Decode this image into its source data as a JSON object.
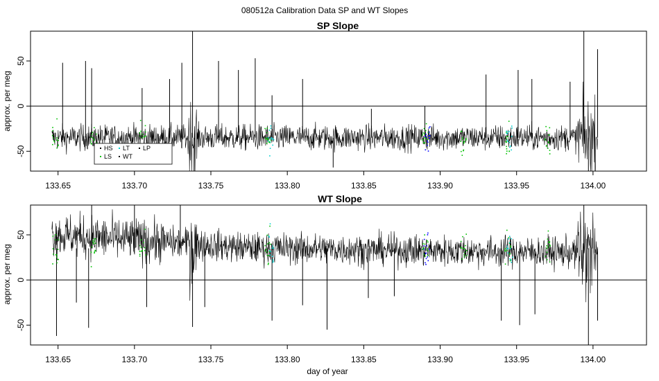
{
  "figure": {
    "suptitle": "080512a   Calibration Data SP and WT Slopes",
    "xlabel": "day of year"
  },
  "chart_data": [
    {
      "type": "line",
      "title": "SP Slope",
      "ylabel": "approx. per meg",
      "xlim": [
        133.632,
        134.035
      ],
      "ylim": [
        -72,
        83
      ],
      "xticks": [
        "133.65",
        "133.70",
        "133.75",
        "133.80",
        "133.85",
        "133.90",
        "133.95",
        "134.00"
      ],
      "yticks": [
        "-50",
        "0",
        "50"
      ],
      "hline": 0,
      "baseline": -35,
      "noise": 10,
      "series": [
        {
          "name": "WT",
          "color": "#000000"
        }
      ],
      "legend": {
        "placement": "lower-left",
        "entries": [
          {
            "label": "HS",
            "color": "#000000"
          },
          {
            "label": "LT",
            "color": "#00d0d0"
          },
          {
            "label": "LP",
            "color": "#000000"
          },
          {
            "label": "LS",
            "color": "#00c000"
          },
          {
            "label": "WT",
            "color": "#000000"
          }
        ]
      },
      "calibration_markers": [
        {
          "x": 133.648,
          "color": "#00c000"
        },
        {
          "x": 133.673,
          "color": "#00c000"
        },
        {
          "x": 133.705,
          "color": "#00c000"
        },
        {
          "x": 133.787,
          "color": "#00c000"
        },
        {
          "x": 133.789,
          "color": "#00d0d0"
        },
        {
          "x": 133.89,
          "color": "#00c000"
        },
        {
          "x": 133.891,
          "color": "#0000ff"
        },
        {
          "x": 133.915,
          "color": "#00c000"
        },
        {
          "x": 133.944,
          "color": "#00c000"
        },
        {
          "x": 133.945,
          "color": "#00d0d0"
        },
        {
          "x": 133.97,
          "color": "#00c000"
        }
      ],
      "spikes": [
        {
          "x": 133.653,
          "y": 48
        },
        {
          "x": 133.668,
          "y": 50
        },
        {
          "x": 133.672,
          "y": 42
        },
        {
          "x": 133.705,
          "y": 20
        },
        {
          "x": 133.723,
          "y": 30
        },
        {
          "x": 133.731,
          "y": 48
        },
        {
          "x": 133.738,
          "y": 83
        },
        {
          "x": 133.739,
          "y": -72
        },
        {
          "x": 133.755,
          "y": 50
        },
        {
          "x": 133.768,
          "y": 40
        },
        {
          "x": 133.779,
          "y": 53
        },
        {
          "x": 133.79,
          "y": 12
        },
        {
          "x": 133.81,
          "y": 30
        },
        {
          "x": 133.83,
          "y": -68
        },
        {
          "x": 133.855,
          "y": -3
        },
        {
          "x": 133.89,
          "y": 0
        },
        {
          "x": 133.93,
          "y": 35
        },
        {
          "x": 133.951,
          "y": 40
        },
        {
          "x": 133.96,
          "y": 30
        },
        {
          "x": 133.985,
          "y": 27
        },
        {
          "x": 133.994,
          "y": 83
        },
        {
          "x": 133.997,
          "y": -72
        },
        {
          "x": 134.003,
          "y": 63
        }
      ]
    },
    {
      "type": "line",
      "title": "WT Slope",
      "ylabel": "approx. per meg",
      "xlim": [
        133.632,
        134.035
      ],
      "ylim": [
        -72,
        83
      ],
      "xticks": [
        "133.65",
        "133.70",
        "133.75",
        "133.80",
        "133.85",
        "133.90",
        "133.95",
        "134.00"
      ],
      "yticks": [
        "-50",
        "0",
        "50"
      ],
      "hline": 0,
      "baseline": 35,
      "noise": 12,
      "series": [
        {
          "name": "WT",
          "color": "#000000"
        }
      ],
      "calibration_markers": [
        {
          "x": 133.648,
          "color": "#00c000"
        },
        {
          "x": 133.673,
          "color": "#00c000"
        },
        {
          "x": 133.705,
          "color": "#00c000"
        },
        {
          "x": 133.787,
          "color": "#00c000"
        },
        {
          "x": 133.789,
          "color": "#00d0d0"
        },
        {
          "x": 133.89,
          "color": "#00c000"
        },
        {
          "x": 133.891,
          "color": "#0000ff"
        },
        {
          "x": 133.915,
          "color": "#00c000"
        },
        {
          "x": 133.944,
          "color": "#00c000"
        },
        {
          "x": 133.945,
          "color": "#00d0d0"
        },
        {
          "x": 133.97,
          "color": "#00c000"
        }
      ],
      "spikes": [
        {
          "x": 133.649,
          "y": -62
        },
        {
          "x": 133.662,
          "y": -25
        },
        {
          "x": 133.67,
          "y": -53
        },
        {
          "x": 133.672,
          "y": 83
        },
        {
          "x": 133.7,
          "y": 83
        },
        {
          "x": 133.708,
          "y": -30
        },
        {
          "x": 133.73,
          "y": 83
        },
        {
          "x": 133.738,
          "y": -52
        },
        {
          "x": 133.746,
          "y": -30
        },
        {
          "x": 133.79,
          "y": -45
        },
        {
          "x": 133.81,
          "y": -28
        },
        {
          "x": 133.826,
          "y": -55
        },
        {
          "x": 133.853,
          "y": -20
        },
        {
          "x": 133.87,
          "y": -18
        },
        {
          "x": 133.94,
          "y": -45
        },
        {
          "x": 133.952,
          "y": -50
        },
        {
          "x": 133.962,
          "y": -38
        },
        {
          "x": 133.994,
          "y": 83
        },
        {
          "x": 133.997,
          "y": -72
        },
        {
          "x": 134.003,
          "y": -45
        }
      ]
    }
  ]
}
